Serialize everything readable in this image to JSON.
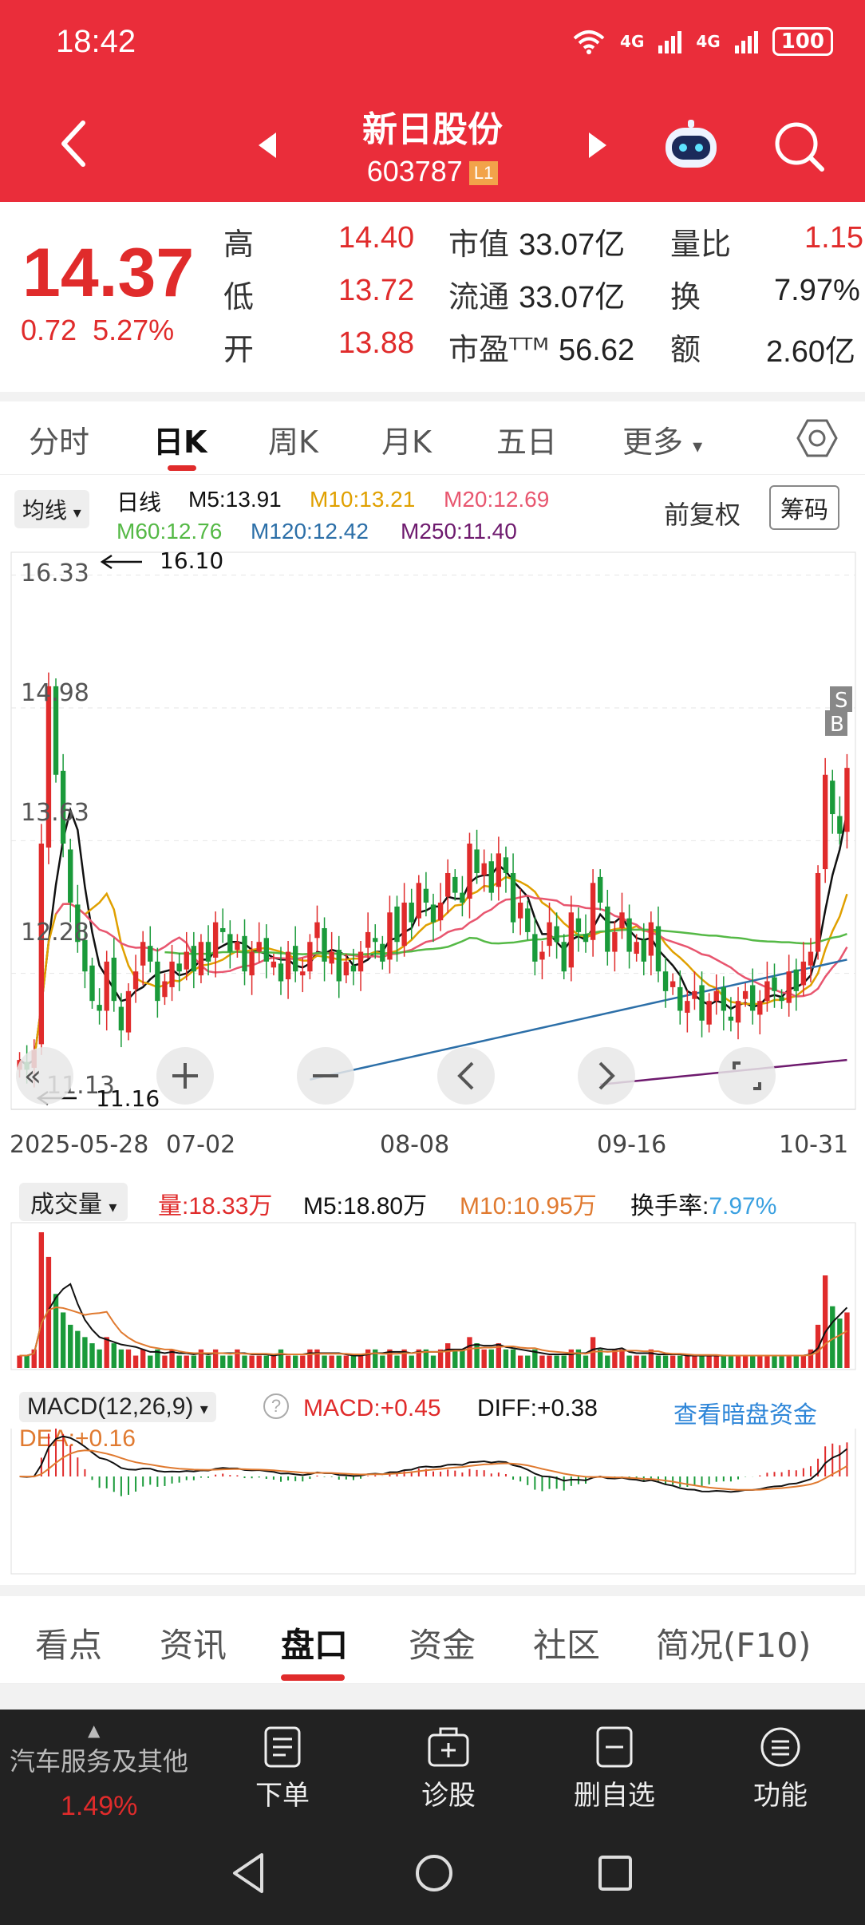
{
  "status": {
    "time": "18:42",
    "battery": "100",
    "net1": "4G",
    "net2": "4G"
  },
  "header": {
    "name": "新日股份",
    "code": "603787",
    "level": "L1"
  },
  "quote": {
    "price": "14.37",
    "change": "0.72",
    "change_pct": "5.27%",
    "items": [
      {
        "label": "高",
        "value": "14.40"
      },
      {
        "label": "低",
        "value": "13.72"
      },
      {
        "label": "开",
        "value": "13.88"
      },
      {
        "label": "市值",
        "value": "33.07亿"
      },
      {
        "label": "流通",
        "value": "33.07亿"
      },
      {
        "label": "市盈ᵀᵀᴹ",
        "value": "56.62"
      },
      {
        "label": "量比",
        "value": "1.15"
      },
      {
        "label": "换",
        "value": "7.97%"
      },
      {
        "label": "额",
        "value": "2.60亿"
      }
    ]
  },
  "kline_tabs": [
    "分时",
    "日K",
    "周K",
    "月K",
    "五日",
    "更多"
  ],
  "ma": {
    "select": "均线",
    "period": "日线",
    "m5": "M5:13.91",
    "m10": "M10:13.21",
    "m20": "M20:12.69",
    "m60": "M60:12.76",
    "m120": "M120:12.42",
    "m250": "M250:11.40",
    "adjust": "前复权",
    "chip": "筹码"
  },
  "colors": {
    "m5": "#111111",
    "m10": "#e0a000",
    "m20": "#e8566f",
    "m60": "#55b946",
    "m120": "#2c6fa8",
    "m250": "#6e1a6e",
    "up": "#e02b2b",
    "down": "#1a9a3a"
  },
  "chart_data": {
    "type": "candlestick",
    "y_ticks": [
      "16.33",
      "14.98",
      "13.63",
      "12.28",
      "11.13"
    ],
    "x_ticks": [
      "2025-05-28",
      "07-02",
      "08-08",
      "09-16",
      "10-31"
    ],
    "annotations": {
      "high": "16.10",
      "low": "11.16",
      "markers": [
        "S",
        "B"
      ]
    },
    "ylim": [
      10.93,
      16.53
    ],
    "closes": [
      11.4,
      11.3,
      11.5,
      13.6,
      15.2,
      14.3,
      13.6,
      13.0,
      12.6,
      12.3,
      12.0,
      11.9,
      12.4,
      12.0,
      11.7,
      12.1,
      12.3,
      12.6,
      12.4,
      12.0,
      12.2,
      12.4,
      12.3,
      12.5,
      12.3,
      12.6,
      12.4,
      12.8,
      12.7,
      12.5,
      12.6,
      12.3,
      12.5,
      12.6,
      12.4,
      12.4,
      12.2,
      12.5,
      12.3,
      12.3,
      12.6,
      12.8,
      12.4,
      12.5,
      12.2,
      12.4,
      12.3,
      12.5,
      12.7,
      12.6,
      12.4,
      12.9,
      12.6,
      13.0,
      12.8,
      13.2,
      13.0,
      12.8,
      13.0,
      13.3,
      13.1,
      13.0,
      13.6,
      13.3,
      13.4,
      13.1,
      13.5,
      13.3,
      12.8,
      13.0,
      12.7,
      12.4,
      12.5,
      12.8,
      12.6,
      12.3,
      12.9,
      12.7,
      12.6,
      13.2,
      13.0,
      12.5,
      12.7,
      12.9,
      12.5,
      12.6,
      12.4,
      12.8,
      12.3,
      12.1,
      12.2,
      11.9,
      12.0,
      12.1,
      11.8,
      12.0,
      12.1,
      11.9,
      11.8,
      12.0,
      12.1,
      11.9,
      12.0,
      12.2,
      12.1,
      12.0,
      12.3,
      12.1,
      12.4,
      12.5,
      13.3,
      14.3,
      13.9,
      13.7,
      14.37
    ],
    "ma_values": {
      "M5": 13.91,
      "M10": 13.21,
      "M20": 12.69,
      "M60": 12.76,
      "M120": 12.42,
      "M250": 11.4
    }
  },
  "volume": {
    "select": "成交量",
    "vol": "量:18.33万",
    "m5": "M5:18.80万",
    "m10": "M10:10.95万",
    "turnover_label": "换手率:",
    "turnover": "7.97%",
    "values": [
      2,
      2,
      3,
      22,
      18,
      12,
      9,
      7,
      6,
      5,
      4,
      3,
      5,
      4,
      3,
      3,
      2,
      3,
      2,
      3,
      2,
      3,
      2,
      2,
      2,
      3,
      2,
      3,
      2,
      2,
      3,
      2,
      2,
      2,
      2,
      2,
      3,
      2,
      2,
      2,
      3,
      3,
      2,
      2,
      2,
      2,
      2,
      2,
      3,
      3,
      2,
      3,
      2,
      3,
      2,
      3,
      3,
      2,
      3,
      4,
      3,
      3,
      5,
      4,
      3,
      3,
      4,
      3,
      3,
      2,
      2,
      3,
      2,
      2,
      2,
      2,
      3,
      3,
      2,
      5,
      3,
      2,
      3,
      3,
      2,
      2,
      2,
      3,
      2,
      2,
      2,
      2,
      2,
      2,
      2,
      2,
      2,
      2,
      2,
      2,
      2,
      2,
      2,
      2,
      2,
      2,
      2,
      2,
      2,
      3,
      7,
      15,
      10,
      8,
      9
    ]
  },
  "macd": {
    "select": "MACD(12,26,9)",
    "macd": "MACD:+0.45",
    "diff": "DIFF:+0.38",
    "dea": "DEA:+0.16",
    "link": "查看暗盘资金"
  },
  "info_tabs": [
    "看点",
    "资讯",
    "盘口",
    "资金",
    "社区",
    "简况(F10)"
  ],
  "toolbar": {
    "sector": "汽车服务及其他",
    "sector_change": "1.49%",
    "items": [
      "下单",
      "诊股",
      "删自选",
      "功能"
    ]
  }
}
